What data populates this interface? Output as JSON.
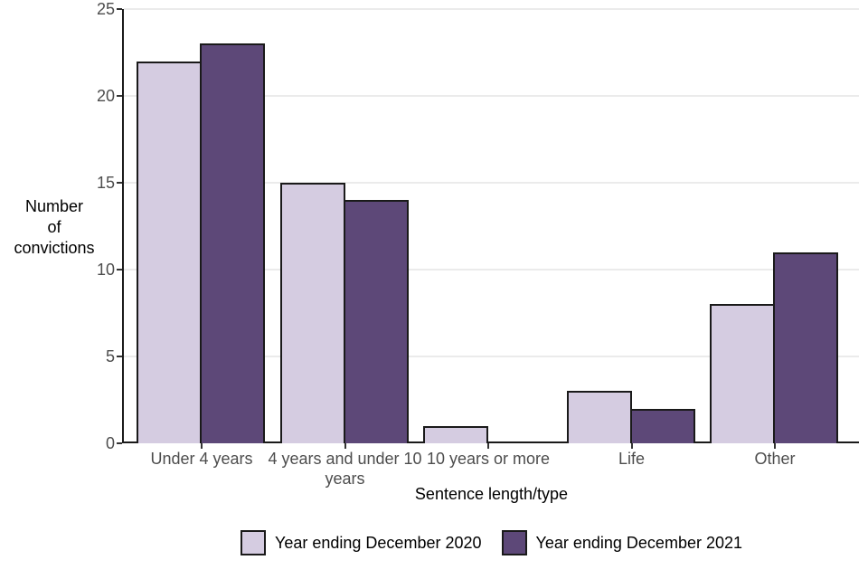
{
  "chart_data": {
    "type": "bar",
    "categories": [
      "Under 4 years",
      "4 years and under 10 years",
      "10 years or more",
      "Life",
      "Other"
    ],
    "series": [
      {
        "name": "Year ending December 2020",
        "values": [
          22,
          15,
          1,
          3,
          8
        ],
        "color": "#d5cce1"
      },
      {
        "name": "Year ending December 2021",
        "values": [
          23,
          14,
          0,
          2,
          11
        ],
        "color": "#5d4878"
      }
    ],
    "title": "",
    "xlabel": "Sentence length/type",
    "ylabel": "Number of convictions",
    "ylabel_lines": [
      "Number",
      "of",
      "convictions"
    ],
    "ylim": [
      0,
      25
    ],
    "yticks": [
      0,
      5,
      10,
      15,
      20,
      25
    ],
    "grid": "horizontal-major",
    "legend_position": "bottom",
    "colors": {
      "background": "#ffffff",
      "grid": "#ebebeb",
      "axis": "#1a1a1a",
      "bar_border": "#1a1a1a",
      "tick_mark": "#333333",
      "tick_text": "#4d4d4d",
      "title_text": "#000000"
    }
  }
}
